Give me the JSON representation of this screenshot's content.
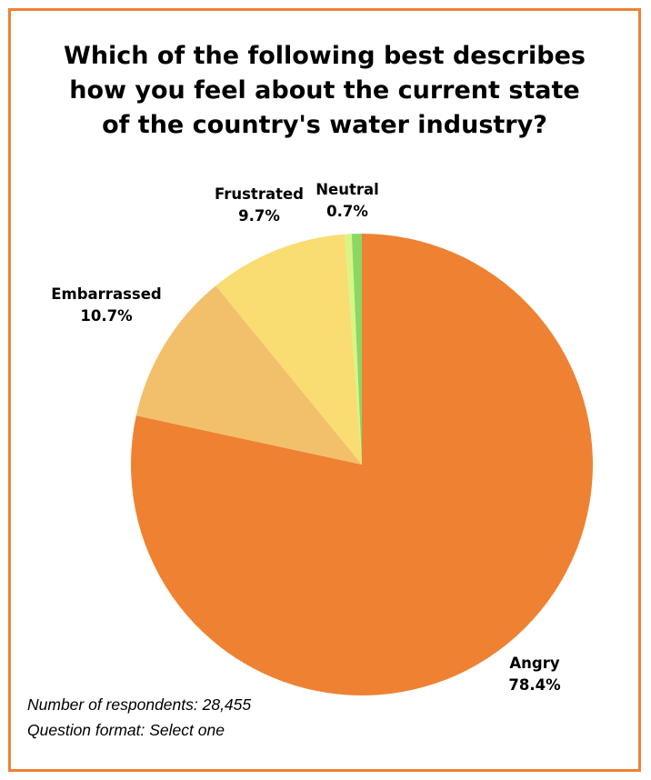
{
  "title_lines": [
    "Which of the following best describes",
    "how you feel about the current state",
    "of the country's water industry?"
  ],
  "notes": {
    "respondents": "Number of respondents: 28,455",
    "format": "Question format: Select one"
  },
  "colors": {
    "frame": "#EE8232",
    "text": "#000000"
  },
  "chart_data": {
    "type": "pie",
    "title": "Which of the following best describes how you feel about the current state of the country's water industry?",
    "slices": [
      {
        "label": "Angry",
        "value": 78.4,
        "display": "78.4%",
        "color": "#EE8232"
      },
      {
        "label": "Embarrassed",
        "value": 10.7,
        "display": "10.7%",
        "color": "#F2C06B"
      },
      {
        "label": "Frustrated",
        "value": 9.7,
        "display": "9.7%",
        "color": "#F9DC72"
      },
      {
        "label": "",
        "value": 0.5,
        "display": "",
        "color": "#D8F584"
      },
      {
        "label": "Neutral",
        "value": 0.7,
        "display": "0.7%",
        "color": "#8BD763"
      }
    ],
    "start": "12 o'clock, clockwise",
    "legend": "none (direct labels)"
  }
}
